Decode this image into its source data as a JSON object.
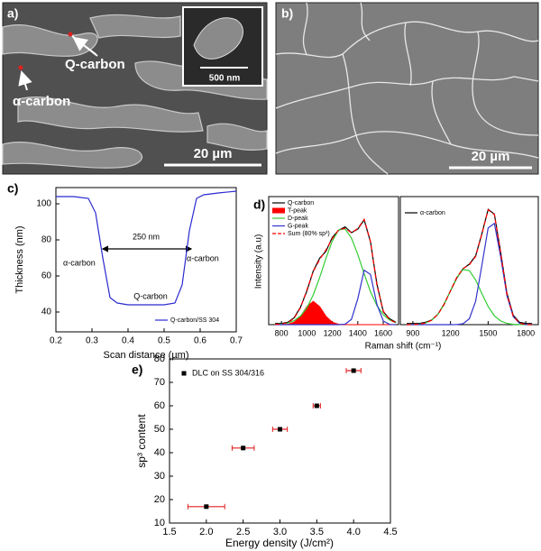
{
  "images": {
    "a": {
      "label": "a)",
      "annotations": [
        "Q-carbon",
        "α-carbon"
      ],
      "inset_scale_bar": "500 nm",
      "scale_bar": "20 µm"
    },
    "b": {
      "label": "b)",
      "scale_bar": "20 µm"
    }
  },
  "chart_data": [
    {
      "type": "line",
      "panel_label": "c)",
      "xlabel": "Scan distance (µm)",
      "ylabel": "Thickness (nm)",
      "x": [
        0.2,
        0.25,
        0.29,
        0.31,
        0.33,
        0.35,
        0.37,
        0.4,
        0.45,
        0.5,
        0.53,
        0.55,
        0.57,
        0.59,
        0.61,
        0.65,
        0.7
      ],
      "series": [
        {
          "name": "Q-carbon/SS 304",
          "color": "#2a2ad0",
          "values": [
            104,
            104,
            103,
            95,
            70,
            48,
            45,
            44,
            44,
            44,
            45,
            55,
            85,
            103,
            105,
            106,
            107
          ]
        }
      ],
      "xlim": [
        0.2,
        0.7
      ],
      "xticks": [
        0.2,
        0.3,
        0.4,
        0.5,
        0.6,
        0.7
      ],
      "ylim": [
        29,
        109
      ],
      "yticks": [
        40,
        60,
        80,
        100
      ],
      "annotations": [
        "α-carbon",
        "250 nm",
        "Q-carbon",
        "α-carbon"
      ],
      "legend": "lower right"
    },
    {
      "type": "line",
      "panel_label": "d)",
      "xlabel": "Raman shift (cm⁻¹)",
      "ylabel": "Intensity (a.u)",
      "x": [
        750,
        800,
        850,
        900,
        950,
        1000,
        1050,
        1100,
        1150,
        1200,
        1250,
        1300,
        1350,
        1400,
        1450,
        1500,
        1550,
        1600,
        1650,
        1700
      ],
      "series": [
        {
          "name": "Q-carbon",
          "color": "#000000",
          "values": [
            0.01,
            0.01,
            0.02,
            0.06,
            0.15,
            0.29,
            0.46,
            0.57,
            0.63,
            0.75,
            0.81,
            0.84,
            0.79,
            0.82,
            0.9,
            0.71,
            0.35,
            0.11,
            0.05,
            0.02
          ]
        },
        {
          "name": "T-peak",
          "color": "#ff0000",
          "area": true,
          "values": [
            0,
            0,
            0.003,
            0.02,
            0.072,
            0.155,
            0.2,
            0.155,
            0.072,
            0.02,
            0.003,
            0,
            0,
            0,
            0,
            0,
            0,
            0,
            0,
            0
          ]
        },
        {
          "name": "D-peak",
          "color": "#33cc33",
          "values": [
            0.002,
            0.005,
            0.014,
            0.034,
            0.074,
            0.145,
            0.256,
            0.404,
            0.57,
            0.72,
            0.813,
            0.823,
            0.744,
            0.603,
            0.437,
            0.283,
            0.164,
            0.085,
            0.04,
            0.016
          ]
        },
        {
          "name": "G-peak",
          "color": "#3333cc",
          "values": [
            0,
            0,
            0,
            0,
            0,
            0,
            0,
            0,
            0,
            0,
            0,
            0.004,
            0.046,
            0.222,
            0.468,
            0.431,
            0.174,
            0.031,
            0.002,
            0
          ]
        },
        {
          "name": "Sum (80% sp³)",
          "color": "#ff0000",
          "dashed": true,
          "values": [
            0.002,
            0.005,
            0.017,
            0.054,
            0.146,
            0.3,
            0.456,
            0.559,
            0.642,
            0.74,
            0.816,
            0.827,
            0.79,
            0.825,
            0.905,
            0.714,
            0.338,
            0.116,
            0.042,
            0.016
          ]
        }
      ],
      "xlim": [
        700,
        1720
      ],
      "xticks": [
        800,
        1000,
        1200,
        1400,
        1600
      ],
      "ylim": [
        0,
        1.1
      ],
      "legend": "upper left"
    },
    {
      "type": "line",
      "x": [
        850,
        900,
        950,
        1000,
        1050,
        1100,
        1150,
        1200,
        1250,
        1300,
        1350,
        1400,
        1450,
        1500,
        1550,
        1600,
        1650,
        1700,
        1750,
        1800,
        1850
      ],
      "series": [
        {
          "name": "α-carbon",
          "color": "#000000",
          "values": [
            0.01,
            0.01,
            0.01,
            0.02,
            0.04,
            0.09,
            0.18,
            0.29,
            0.4,
            0.48,
            0.52,
            0.59,
            0.78,
            0.99,
            0.95,
            0.62,
            0.27,
            0.08,
            0.02,
            0.01,
            0.01
          ]
        },
        {
          "color": "#33cc33",
          "values": [
            0,
            0.001,
            0.004,
            0.014,
            0.038,
            0.089,
            0.176,
            0.291,
            0.405,
            0.473,
            0.465,
            0.384,
            0.267,
            0.156,
            0.076,
            0.032,
            0.011,
            0.003,
            0.001,
            0,
            0
          ]
        },
        {
          "color": "#3333cc",
          "values": [
            0,
            0,
            0,
            0,
            0,
            0,
            0,
            0,
            0.001,
            0.008,
            0.05,
            0.201,
            0.509,
            0.831,
            0.869,
            0.582,
            0.25,
            0.069,
            0.012,
            0.001,
            0
          ]
        },
        {
          "color": "#ff0000",
          "dashed": true,
          "values": [
            0,
            0.001,
            0.004,
            0.014,
            0.038,
            0.089,
            0.176,
            0.291,
            0.406,
            0.481,
            0.515,
            0.585,
            0.776,
            0.987,
            0.945,
            0.614,
            0.261,
            0.072,
            0.013,
            0.001,
            0
          ]
        }
      ],
      "xlim": [
        800,
        1900
      ],
      "xticks": [
        900,
        1200,
        1500,
        1800
      ],
      "ylim": [
        0,
        1.1
      ],
      "legend": "upper left"
    },
    {
      "type": "scatter",
      "panel_label": "e)",
      "xlabel": "Energy density (J/cm²)",
      "ylabel": "sp³ content",
      "x": [
        2.0,
        2.5,
        3.0,
        3.5,
        4.0
      ],
      "series": [
        {
          "name": "DLC on SS 304/316",
          "color": "#000000",
          "error_color": "#e02020",
          "values": [
            17,
            42,
            50,
            60,
            75
          ],
          "xerr": [
            0.25,
            0.15,
            0.1,
            0.05,
            0.1
          ]
        }
      ],
      "xlim": [
        1.5,
        4.5
      ],
      "xticks": [
        1.5,
        {
          "value": 2,
          "label": "2.0"
        },
        2.5,
        {
          "value": 3,
          "label": "3.0"
        },
        3.5,
        {
          "value": 4,
          "label": "4.0"
        },
        4.5
      ],
      "ylim": [
        10,
        80
      ],
      "yticks": [
        10,
        20,
        30,
        40,
        50,
        60,
        70,
        80
      ],
      "legend": "upper left"
    }
  ]
}
